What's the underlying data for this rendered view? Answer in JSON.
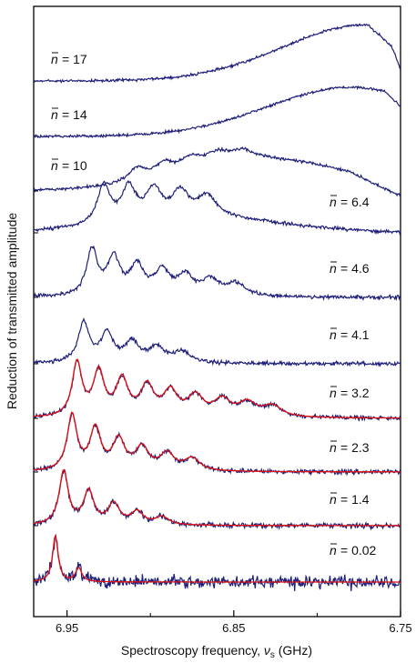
{
  "chart_data": {
    "type": "line",
    "xlabel_prefix": "Spectroscopy frequency, ",
    "xlabel_symbol": "ν",
    "xlabel_sub": "s",
    "xlabel_unit": " (GHz)",
    "ylabel": "Reduction of transmitted amplitude",
    "x_ticks": [
      "6.95",
      "6.85",
      "6.75"
    ],
    "xlim": [
      6.97,
      6.75
    ],
    "x_reversed": true,
    "colors": {
      "data": "#1f1f7a",
      "fit": "#e01010",
      "frame": "#000000"
    },
    "traces": [
      {
        "label_var": "n",
        "label_value": "= 17",
        "label_side": "left",
        "has_fit": false,
        "peaks": []
      },
      {
        "label_var": "n",
        "label_value": "= 14",
        "label_side": "left",
        "has_fit": false,
        "peaks": []
      },
      {
        "label_var": "n",
        "label_value": "= 10",
        "label_side": "left",
        "has_fit": false,
        "peaks": [
          6.908,
          6.892,
          6.876,
          6.86,
          6.845
        ]
      },
      {
        "label_var": "n",
        "label_value": "= 6.4",
        "label_side": "right",
        "has_fit": false,
        "peaks": [
          6.928,
          6.913,
          6.898,
          6.882,
          6.866
        ]
      },
      {
        "label_var": "n",
        "label_value": "= 4.6",
        "label_side": "right",
        "has_fit": false,
        "peaks": [
          6.935,
          6.922,
          6.908,
          6.893,
          6.879,
          6.864,
          6.849
        ]
      },
      {
        "label_var": "n",
        "label_value": "= 4.1",
        "label_side": "right",
        "has_fit": false,
        "peaks": [
          6.94,
          6.926,
          6.911,
          6.896,
          6.881
        ]
      },
      {
        "label_var": "n",
        "label_value": "= 3.2",
        "label_side": "right",
        "has_fit": true,
        "peaks": [
          6.944,
          6.931,
          6.917,
          6.902,
          6.888,
          6.873,
          6.857,
          6.842,
          6.827
        ]
      },
      {
        "label_var": "n",
        "label_value": "= 2.3",
        "label_side": "right",
        "has_fit": true,
        "peaks": [
          6.947,
          6.933,
          6.919,
          6.905,
          6.89,
          6.875
        ]
      },
      {
        "label_var": "n",
        "label_value": "= 1.4",
        "label_side": "right",
        "has_fit": true,
        "peaks": [
          6.952,
          6.937,
          6.922,
          6.908,
          6.893
        ]
      },
      {
        "label_var": "n",
        "label_value": "= 0.02",
        "label_side": "right",
        "has_fit": true,
        "peaks": [
          6.957,
          6.943
        ]
      }
    ]
  }
}
